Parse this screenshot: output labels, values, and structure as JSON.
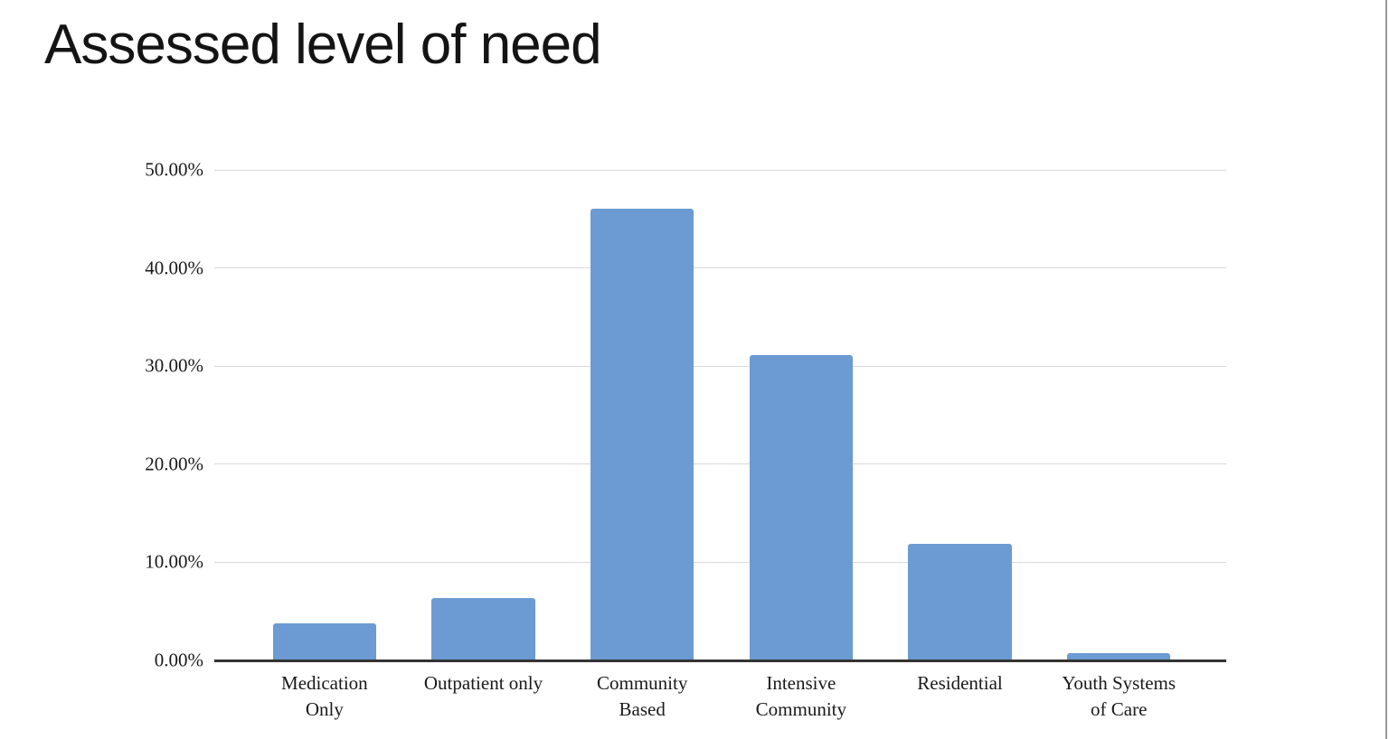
{
  "title": "Assessed level of need",
  "chart_data": {
    "type": "bar",
    "title": "Assessed level of need",
    "categories": [
      "Medication\nOnly",
      "Outpatient only",
      "Community\nBased",
      "Intensive\nCommunity",
      "Residential",
      "Youth Systems\nof Care"
    ],
    "values": [
      3.8,
      6.4,
      46.0,
      31.1,
      11.9,
      0.7
    ],
    "value_unit": "%",
    "xlabel": "",
    "ylabel": "",
    "ylim": [
      0,
      50
    ],
    "yticks": [
      0,
      10,
      20,
      30,
      40,
      50
    ],
    "ytick_labels": [
      "0.00%",
      "10.00%",
      "20.00%",
      "30.00%",
      "40.00%",
      "50.00%"
    ],
    "grid": true,
    "legend": false,
    "colors": {
      "bar": "#6B9BD2",
      "gridline": "#D9D9D9",
      "axis_line": "#333333",
      "text": "#1A1A1A",
      "right_border": "#9A9A9A"
    }
  }
}
